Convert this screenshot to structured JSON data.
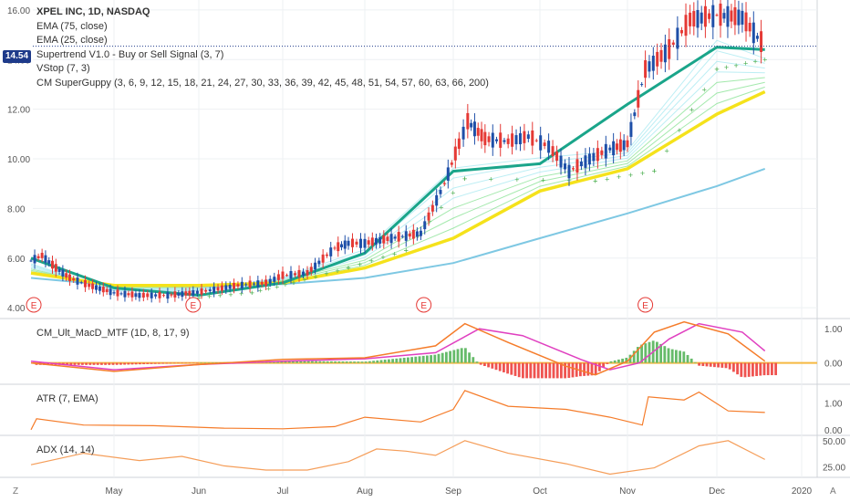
{
  "header": {
    "symbol_line": "XPEL INC, 1D, NASDAQ",
    "indicators": [
      "EMA (75, close)",
      "EMA (25, close)",
      "Supertrend V1.0 - Buy or Sell Signal (3, 7)",
      "VStop (7, 3)",
      "CM SuperGuppy (3, 6, 9, 12, 15, 18, 21, 24, 27, 30, 33, 36, 39, 42, 45, 48, 51, 54, 57, 60, 63, 66, 200)"
    ]
  },
  "current_price": "14.54",
  "panes": {
    "macd": {
      "label": "CM_Ult_MacD_MTF (1D, 8, 17, 9)",
      "ticks": [
        "1.00",
        "0.00"
      ]
    },
    "atr": {
      "label": "ATR (7, EMA)",
      "ticks": [
        "1.00",
        "0.00"
      ]
    },
    "adx": {
      "label": "ADX (14, 14)",
      "ticks": [
        "50.00",
        "25.00"
      ]
    }
  },
  "axis_buttons": {
    "left": "Z",
    "right": "A"
  },
  "colors": {
    "up": "#26a69a",
    "down": "#ef5350",
    "candle_up": "#1e4fa8",
    "candle_down": "#e53935",
    "ema75": "#f5e21b",
    "ema200": "#7ec8e3",
    "supertrend_up": "#4caf50",
    "supertrend_down": "#e53935",
    "macd_line": "#f57c2a",
    "signal_line": "#e040c0",
    "hist_up": "#66bb6a",
    "hist_down": "#ef5350",
    "atr": "#f57c2a",
    "adx": "#f59e5a",
    "grid": "#eef0f3"
  },
  "chart_data": {
    "type": "line",
    "title": "XPEL INC, 1D, NASDAQ",
    "x_tick_labels": [
      "May",
      "Jun",
      "Jul",
      "Aug",
      "Sep",
      "Oct",
      "Nov",
      "Dec",
      "2020"
    ],
    "y_tick_labels": [
      "16.00",
      "14.00",
      "12.00",
      "10.00",
      "8.00",
      "6.00",
      "4.00"
    ],
    "ylim": [
      3.6,
      16.4
    ],
    "earnings_markers": [
      "E",
      "E",
      "E",
      "E"
    ],
    "earnings_x": [
      "Apr 02",
      "May 29",
      "Aug 21",
      "Nov 07"
    ],
    "price": [
      [
        "Apr 01",
        5.9
      ],
      [
        "Apr 05",
        6.1
      ],
      [
        "Apr 10",
        5.6
      ],
      [
        "Apr 15",
        5.2
      ],
      [
        "Apr 22",
        4.9
      ],
      [
        "May 01",
        4.6
      ],
      [
        "May 10",
        4.5
      ],
      [
        "May 20",
        4.5
      ],
      [
        "May 29",
        4.6
      ],
      [
        "Jun 05",
        4.7
      ],
      [
        "Jun 15",
        4.9
      ],
      [
        "Jun 25",
        5.0
      ],
      [
        "Jul 01",
        5.3
      ],
      [
        "Jul 10",
        5.4
      ],
      [
        "Jul 20",
        6.4
      ],
      [
        "Jul 25",
        6.6
      ],
      [
        "Aug 01",
        6.6
      ],
      [
        "Aug 10",
        6.8
      ],
      [
        "Aug 20",
        7.0
      ],
      [
        "Aug 28",
        9.0
      ],
      [
        "Sep 03",
        10.6
      ],
      [
        "Sep 06",
        11.5
      ],
      [
        "Sep 12",
        10.8
      ],
      [
        "Sep 20",
        10.7
      ],
      [
        "Sep 27",
        10.9
      ],
      [
        "Oct 04",
        10.5
      ],
      [
        "Oct 11",
        9.5
      ],
      [
        "Oct 18",
        10.0
      ],
      [
        "Oct 25",
        10.4
      ],
      [
        "Nov 01",
        10.6
      ],
      [
        "Nov 07",
        13.6
      ],
      [
        "Nov 15",
        14.4
      ],
      [
        "Nov 22",
        15.6
      ],
      [
        "Dec 01",
        15.8
      ],
      [
        "Dec 10",
        15.7
      ],
      [
        "Dec 18",
        14.5
      ]
    ],
    "series": [
      {
        "values": [
          [
            "Apr 01",
            5.4
          ],
          [
            "May 01",
            4.9
          ],
          [
            "Jun 01",
            4.9
          ],
          [
            "Jul 01",
            5.0
          ],
          [
            "Aug 01",
            5.6
          ],
          [
            "Sep 01",
            6.8
          ],
          [
            "Oct 01",
            8.7
          ],
          [
            "Nov 01",
            9.6
          ],
          [
            "Dec 01",
            11.8
          ],
          [
            "Dec 18",
            12.7
          ]
        ]
      },
      {
        "values": [
          [
            "Apr 01",
            5.2
          ],
          [
            "May 01",
            4.9
          ],
          [
            "Jun 01",
            4.85
          ],
          [
            "Jul 01",
            4.95
          ],
          [
            "Aug 01",
            5.2
          ],
          [
            "Sep 01",
            5.8
          ],
          [
            "Oct 01",
            6.8
          ],
          [
            "Nov 01",
            7.8
          ],
          [
            "Dec 01",
            8.9
          ],
          [
            "Dec 18",
            9.6
          ]
        ]
      },
      {
        "values": [
          [
            "Apr 01",
            6.0
          ],
          [
            "May 01",
            4.8
          ],
          [
            "Jun 01",
            4.5
          ],
          [
            "Jul 01",
            5.0
          ],
          [
            "Aug 01",
            6.2
          ],
          [
            "Sep 01",
            9.5
          ],
          [
            "Oct 01",
            9.8
          ],
          [
            "Nov 01",
            12.2
          ],
          [
            "Dec 01",
            14.5
          ],
          [
            "Dec 18",
            14.4
          ]
        ]
      },
      {
        "values": [
          [
            "Jun 01",
            4.4
          ],
          [
            "Jun 20",
            4.6
          ],
          [
            "Jul 05",
            5.0
          ],
          [
            "Jul 25",
            5.6
          ],
          [
            "Aug 15",
            6.3
          ],
          [
            "Sep 05",
            9.2
          ],
          [
            "Oct 20",
            9.1
          ],
          [
            "Nov 10",
            9.5
          ],
          [
            "Dec 01",
            13.6
          ],
          [
            "Dec 18",
            14.0
          ]
        ]
      }
    ]
  },
  "macd_data": {
    "ylim": [
      -0.6,
      1.3
    ],
    "macd": [
      [
        "Apr 01",
        0.0
      ],
      [
        "May 01",
        -0.25
      ],
      [
        "Jun 01",
        -0.05
      ],
      [
        "Jul 01",
        0.1
      ],
      [
        "Aug 01",
        0.15
      ],
      [
        "Aug 25",
        0.5
      ],
      [
        "Sep 05",
        1.15
      ],
      [
        "Sep 20",
        0.6
      ],
      [
        "Oct 10",
        -0.1
      ],
      [
        "Oct 20",
        -0.35
      ],
      [
        "Nov 01",
        0.05
      ],
      [
        "Nov 10",
        0.9
      ],
      [
        "Nov 20",
        1.2
      ],
      [
        "Dec 05",
        0.85
      ],
      [
        "Dec 18",
        0.05
      ]
    ],
    "signal": [
      [
        "Apr 01",
        0.05
      ],
      [
        "May 01",
        -0.2
      ],
      [
        "Jun 01",
        -0.05
      ],
      [
        "Jul 01",
        0.05
      ],
      [
        "Aug 01",
        0.12
      ],
      [
        "Aug 25",
        0.3
      ],
      [
        "Sep 10",
        1.0
      ],
      [
        "Sep 25",
        0.8
      ],
      [
        "Oct 15",
        0.1
      ],
      [
        "Oct 25",
        -0.2
      ],
      [
        "Nov 05",
        0.0
      ],
      [
        "Nov 15",
        0.7
      ],
      [
        "Nov 25",
        1.15
      ],
      [
        "Dec 10",
        0.9
      ],
      [
        "Dec 18",
        0.35
      ]
    ]
  },
  "atr_data": {
    "ylim": [
      0,
      1.6
    ],
    "values": [
      [
        "Apr 01",
        0.15
      ],
      [
        "Apr 03",
        0.5
      ],
      [
        "Apr 20",
        0.3
      ],
      [
        "May 15",
        0.28
      ],
      [
        "Jun 10",
        0.2
      ],
      [
        "Jul 01",
        0.18
      ],
      [
        "Jul 20",
        0.25
      ],
      [
        "Aug 01",
        0.55
      ],
      [
        "Aug 20",
        0.4
      ],
      [
        "Sep 01",
        0.8
      ],
      [
        "Sep 05",
        1.4
      ],
      [
        "Sep 20",
        0.9
      ],
      [
        "Oct 10",
        0.8
      ],
      [
        "Oct 25",
        0.55
      ],
      [
        "Nov 06",
        0.3
      ],
      [
        "Nov 08",
        1.2
      ],
      [
        "Nov 20",
        1.1
      ],
      [
        "Nov 25",
        1.35
      ],
      [
        "Dec 05",
        0.75
      ],
      [
        "Dec 18",
        0.7
      ]
    ]
  },
  "adx_data": {
    "ylim": [
      15,
      55
    ],
    "values": [
      [
        "Apr 01",
        27
      ],
      [
        "Apr 20",
        38
      ],
      [
        "May 10",
        31
      ],
      [
        "May 25",
        35
      ],
      [
        "Jun 10",
        26
      ],
      [
        "Jun 25",
        22
      ],
      [
        "Jul 10",
        22
      ],
      [
        "Jul 25",
        30
      ],
      [
        "Aug 05",
        42
      ],
      [
        "Aug 15",
        40
      ],
      [
        "Aug 25",
        36
      ],
      [
        "Sep 05",
        50
      ],
      [
        "Sep 20",
        38
      ],
      [
        "Oct 10",
        28
      ],
      [
        "Oct 25",
        18
      ],
      [
        "Nov 10",
        24
      ],
      [
        "Nov 25",
        45
      ],
      [
        "Dec 05",
        50
      ],
      [
        "Dec 18",
        32
      ]
    ]
  }
}
